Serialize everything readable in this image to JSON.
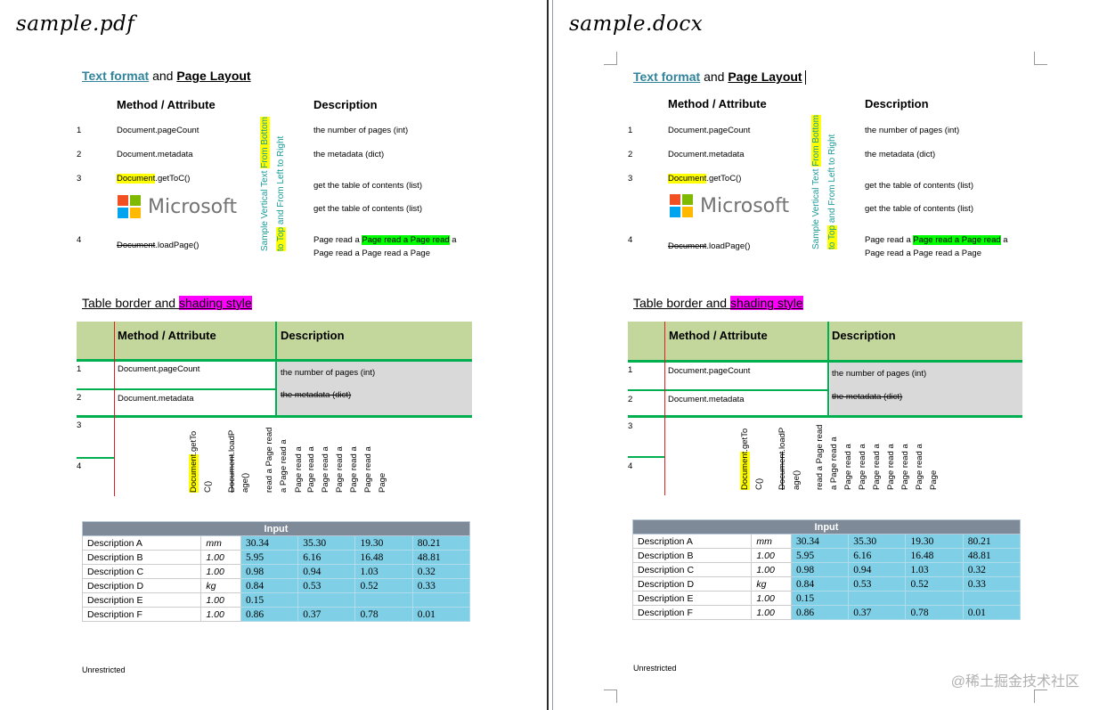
{
  "left": {
    "title": "sample.pdf"
  },
  "right": {
    "title": "sample.docx"
  },
  "section1": {
    "heading_part1": "Text format",
    "heading_and": " and ",
    "heading_part2": "Page Layout",
    "col_method": "Method / Attribute",
    "col_desc": "Description",
    "vertical_line1_a": "Sample Vertical Text",
    "vertical_line1_b": "From Bottom",
    "vertical_line2_a": "to Top",
    "vertical_line2_b": " and From Left to Right",
    "rows": [
      {
        "num": "1",
        "method": "Document.pageCount",
        "desc": "the number of pages (int)"
      },
      {
        "num": "2",
        "method": "Document.metadata",
        "desc": "the metadata (dict)"
      },
      {
        "num": "3",
        "method_hl": "Document",
        "method_rest": ".getToC()",
        "desc": "get the table of contents (list)",
        "desc2": "get the table of contents (list)"
      },
      {
        "num": "4",
        "method_strike": "Document",
        "method_rest": ".loadPage()",
        "desc_a": "Page read a ",
        "desc_hl": "Page read a Page read",
        "desc_b": " a",
        "desc_line2": "Page read a Page read a Page"
      }
    ],
    "logo_text": "Microsoft",
    "logo_colors": [
      "#f25022",
      "#7fba00",
      "#00a4ef",
      "#ffb900"
    ]
  },
  "section2": {
    "heading_a": "Table border and ",
    "heading_hl": "shading style",
    "col_method": "Method / Attribute",
    "col_desc": "Description",
    "rows": [
      {
        "num": "1",
        "method": "Document.pageCount",
        "desc": "the number of pages (int)"
      },
      {
        "num": "2",
        "method": "Document.metadata",
        "desc_strike": "the metadata (dict)"
      },
      {
        "num": "3"
      },
      {
        "num": "4"
      }
    ],
    "vcol_method_hl": "Document",
    "vcol_method_rest": ".getTo",
    "vcol_method_line2": "C()",
    "vcol_load_strike": "Document",
    "vcol_load_rest": ".loadP",
    "vcol_load_line2": "age()",
    "vcol_read1": "read a Page read",
    "vcol_read1b": "a Page read a",
    "vcol_read_mid": "Page read a",
    "vcol_read_end": "Page"
  },
  "input_table": {
    "header": "Input",
    "rows": [
      {
        "label": "Description A",
        "unit": "mm",
        "values": [
          "30.34",
          "35.30",
          "19.30",
          "80.21"
        ]
      },
      {
        "label": "Description B",
        "unit": "1.00",
        "values": [
          "5.95",
          "6.16",
          "16.48",
          "48.81"
        ]
      },
      {
        "label": "Description C",
        "unit": "1.00",
        "values": [
          "0.98",
          "0.94",
          "1.03",
          "0.32"
        ]
      },
      {
        "label": "Description D",
        "unit": "kg",
        "values": [
          "0.84",
          "0.53",
          "0.52",
          "0.33"
        ]
      },
      {
        "label": "Description E",
        "unit": "1.00",
        "values": [
          "0.15",
          "",
          "",
          ""
        ]
      },
      {
        "label": "Description F",
        "unit": "1.00",
        "values": [
          "0.86",
          "0.37",
          "0.78",
          "0.01"
        ]
      }
    ]
  },
  "footer": "Unrestricted",
  "watermark": "@稀土掘金技术社区"
}
